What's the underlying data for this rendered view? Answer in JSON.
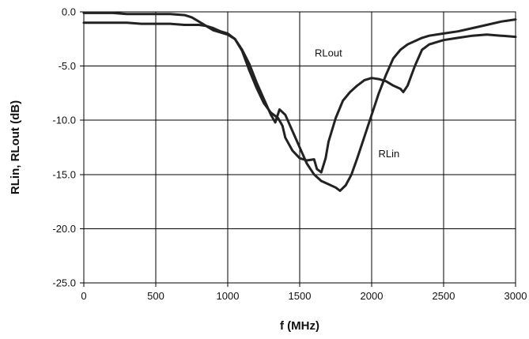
{
  "chart_data": {
    "type": "line",
    "xlabel": "f (MHz)",
    "ylabel": "RLin, RLout (dB)",
    "xlim": [
      0,
      3000
    ],
    "ylim": [
      -25,
      0
    ],
    "x_ticks": [
      0,
      500,
      1000,
      1500,
      2000,
      2500,
      3000
    ],
    "x_tick_labels": [
      "0",
      "500",
      "1000",
      "1500",
      "2000",
      "2500",
      "3000"
    ],
    "y_ticks": [
      0,
      -5,
      -10,
      -15,
      -20,
      -25
    ],
    "y_tick_labels": [
      "0.0",
      "-5.0",
      "-10.0",
      "-15.0",
      "-20.0",
      "-25.0"
    ],
    "grid": true,
    "annotations": [
      {
        "text": "RLout",
        "x": 1700,
        "y": -4.1
      },
      {
        "text": "RLin",
        "x": 2120,
        "y": -13.4
      }
    ],
    "series": [
      {
        "name": "RLin",
        "x": [
          0,
          100,
          200,
          300,
          400,
          500,
          600,
          700,
          800,
          850,
          900,
          950,
          1000,
          1050,
          1100,
          1150,
          1200,
          1250,
          1300,
          1330,
          1360,
          1400,
          1450,
          1500,
          1550,
          1600,
          1650,
          1700,
          1750,
          1780,
          1820,
          1860,
          1900,
          1950,
          2000,
          2050,
          2100,
          2150,
          2200,
          2250,
          2300,
          2350,
          2400,
          2500,
          2600,
          2700,
          2800,
          2900,
          3000
        ],
        "y": [
          -1.0,
          -1.0,
          -1.0,
          -1.0,
          -1.1,
          -1.1,
          -1.1,
          -1.2,
          -1.2,
          -1.3,
          -1.5,
          -1.8,
          -2.0,
          -2.5,
          -3.5,
          -4.8,
          -6.5,
          -8.0,
          -9.5,
          -10.2,
          -9.0,
          -9.5,
          -11.0,
          -12.5,
          -14.0,
          -15.0,
          -15.6,
          -15.9,
          -16.2,
          -16.5,
          -16.0,
          -15.0,
          -13.5,
          -11.5,
          -9.5,
          -7.5,
          -5.8,
          -4.3,
          -3.5,
          -3.0,
          -2.7,
          -2.4,
          -2.2,
          -2.0,
          -1.8,
          -1.5,
          -1.2,
          -0.9,
          -0.7
        ]
      },
      {
        "name": "RLout",
        "x": [
          0,
          100,
          200,
          300,
          400,
          500,
          600,
          700,
          750,
          800,
          850,
          900,
          950,
          1000,
          1050,
          1100,
          1150,
          1200,
          1250,
          1300,
          1350,
          1380,
          1400,
          1450,
          1500,
          1550,
          1600,
          1620,
          1650,
          1680,
          1700,
          1750,
          1800,
          1850,
          1900,
          1950,
          2000,
          2050,
          2100,
          2150,
          2200,
          2220,
          2250,
          2300,
          2350,
          2400,
          2500,
          2600,
          2700,
          2800,
          2900,
          3000
        ],
        "y": [
          -0.1,
          -0.1,
          -0.1,
          -0.2,
          -0.2,
          -0.2,
          -0.2,
          -0.3,
          -0.5,
          -0.9,
          -1.3,
          -1.7,
          -1.9,
          -2.1,
          -2.5,
          -3.6,
          -5.4,
          -7.0,
          -8.4,
          -9.3,
          -9.8,
          -10.5,
          -11.6,
          -12.8,
          -13.5,
          -13.7,
          -13.6,
          -14.5,
          -14.8,
          -13.5,
          -12.0,
          -9.8,
          -8.2,
          -7.4,
          -6.8,
          -6.3,
          -6.1,
          -6.2,
          -6.4,
          -6.8,
          -7.1,
          -7.4,
          -6.8,
          -5.0,
          -3.5,
          -3.0,
          -2.6,
          -2.4,
          -2.2,
          -2.1,
          -2.2,
          -2.3
        ]
      }
    ]
  }
}
